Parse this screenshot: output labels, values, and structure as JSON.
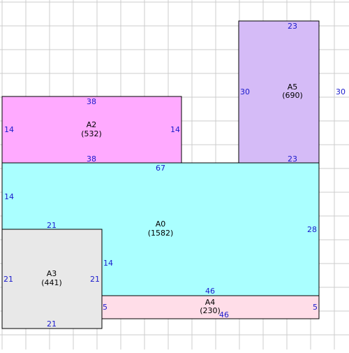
{
  "colors": {
    "grid": "#cccccc",
    "outline": "#000000",
    "dimension_text": "#1a1acc",
    "A0": "#aaffff",
    "A2": "#ffaaff",
    "A3": "#e8e8e8",
    "A4": "#ffdde8",
    "A5": "#d5bbf7"
  },
  "areas": {
    "A0": {
      "name": "A0",
      "value": "(1582)",
      "top": "67",
      "left": "14",
      "right": "28",
      "bottom": "46"
    },
    "A2": {
      "name": "A2",
      "value": "(532)",
      "top": "38",
      "left": "14",
      "right": "14",
      "bottom": "38"
    },
    "A3": {
      "name": "A3",
      "value": "(441)",
      "top": "21",
      "left": "21",
      "right": "21",
      "bottom": "21",
      "extra": "14"
    },
    "A4": {
      "name": "A4",
      "value": "(230)",
      "left": "5",
      "right": "5",
      "bottom": "46"
    },
    "A5": {
      "name": "A5",
      "value": "(690)",
      "top": "23",
      "left": "30",
      "right": "30",
      "bottom": "23"
    }
  }
}
